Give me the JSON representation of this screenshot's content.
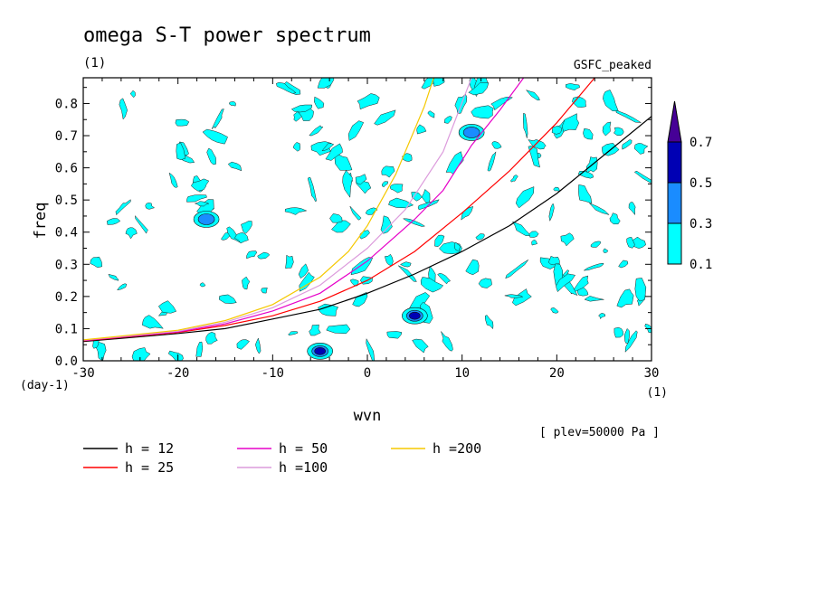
{
  "chart_data": {
    "type": "contour",
    "title": "omega S-T power spectrum",
    "subtitle": "(1)",
    "experiment": "GSFC_peaked",
    "xlabel": "wvn",
    "ylabel": "freq",
    "x_unit": "(1)",
    "y_unit": "(day-1)",
    "level_note": "[ plev=50000 Pa ]",
    "xlim": [
      -30,
      30
    ],
    "ylim": [
      0,
      0.88
    ],
    "x_ticks": [
      -30,
      -20,
      -10,
      0,
      10,
      20,
      30
    ],
    "x_tick_labels": [
      "-30",
      "-20",
      "-10",
      "0",
      "10",
      "20",
      "30"
    ],
    "y_ticks": [
      0,
      0.1,
      0.2,
      0.3,
      0.4,
      0.5,
      0.6,
      0.7,
      0.8
    ],
    "y_tick_labels": [
      "0.0",
      "0.1",
      "0.2",
      "0.3",
      "0.4",
      "0.5",
      "0.6",
      "0.7",
      "0.8"
    ],
    "colorbar": {
      "levels": [
        "0.1",
        "0.3",
        "0.5",
        "0.7"
      ],
      "colors": [
        "#00ffff",
        "#1a8cff",
        "#0000b4",
        "#460096"
      ]
    },
    "series": [
      {
        "name": "h = 12",
        "color": "#000000",
        "points": [
          [
            -30,
            0.06
          ],
          [
            -20,
            0.085
          ],
          [
            -15,
            0.1
          ],
          [
            -10,
            0.13
          ],
          [
            -5,
            0.16
          ],
          [
            0,
            0.21
          ],
          [
            5,
            0.27
          ],
          [
            10,
            0.34
          ],
          [
            15,
            0.42
          ],
          [
            20,
            0.52
          ],
          [
            25,
            0.64
          ],
          [
            30,
            0.76
          ]
        ]
      },
      {
        "name": "h = 25",
        "color": "#ff0000",
        "points": [
          [
            -30,
            0.062
          ],
          [
            -20,
            0.088
          ],
          [
            -15,
            0.11
          ],
          [
            -10,
            0.14
          ],
          [
            -5,
            0.185
          ],
          [
            0,
            0.25
          ],
          [
            5,
            0.34
          ],
          [
            10,
            0.46
          ],
          [
            15,
            0.59
          ],
          [
            20,
            0.74
          ],
          [
            24,
            0.88
          ]
        ]
      },
      {
        "name": "h = 50",
        "color": "#e600c8",
        "points": [
          [
            -30,
            0.063
          ],
          [
            -20,
            0.09
          ],
          [
            -15,
            0.115
          ],
          [
            -10,
            0.155
          ],
          [
            -5,
            0.21
          ],
          [
            0,
            0.31
          ],
          [
            5,
            0.44
          ],
          [
            8,
            0.53
          ],
          [
            11,
            0.67
          ],
          [
            14,
            0.78
          ],
          [
            16.5,
            0.88
          ]
        ]
      },
      {
        "name": "h =100",
        "color": "#dc9bdc",
        "points": [
          [
            -30,
            0.064
          ],
          [
            -20,
            0.092
          ],
          [
            -15,
            0.12
          ],
          [
            -10,
            0.165
          ],
          [
            -5,
            0.235
          ],
          [
            0,
            0.35
          ],
          [
            4,
            0.47
          ],
          [
            8,
            0.65
          ],
          [
            11,
            0.88
          ]
        ]
      },
      {
        "name": "h =200",
        "color": "#f5c800",
        "points": [
          [
            -30,
            0.065
          ],
          [
            -20,
            0.095
          ],
          [
            -15,
            0.125
          ],
          [
            -10,
            0.175
          ],
          [
            -5,
            0.26
          ],
          [
            -2,
            0.34
          ],
          [
            0,
            0.42
          ],
          [
            3,
            0.58
          ],
          [
            6,
            0.79
          ],
          [
            7,
            0.88
          ]
        ]
      }
    ],
    "peaks": [
      {
        "x": 5,
        "y": 0.14,
        "level": 3
      },
      {
        "x": -5,
        "y": 0.03,
        "level": 3
      },
      {
        "x": 11,
        "y": 0.71,
        "level": 2
      },
      {
        "x": -17,
        "y": 0.44,
        "level": 2
      }
    ]
  }
}
